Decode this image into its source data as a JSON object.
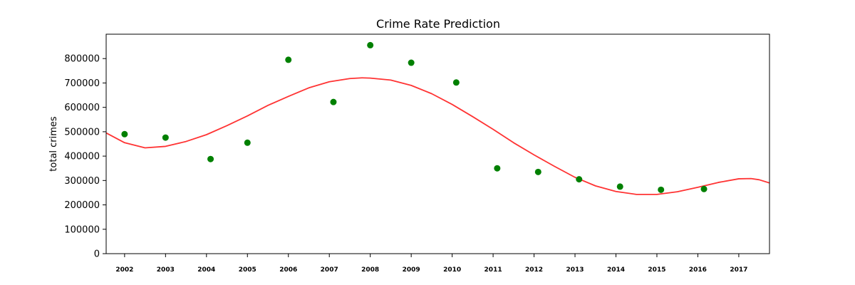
{
  "chart_data": {
    "type": "scatter",
    "title": "Crime Rate Prediction",
    "xlabel": "",
    "ylabel": "total crimes",
    "xlim": [
      2001.55,
      2017.75
    ],
    "ylim": [
      0,
      900000
    ],
    "yticks": [
      0,
      100000,
      200000,
      300000,
      400000,
      500000,
      600000,
      700000,
      800000
    ],
    "ytick_labels": [
      "0",
      "100000",
      "200000",
      "300000",
      "400000",
      "500000",
      "600000",
      "700000",
      "800000"
    ],
    "xticks": [
      2002,
      2003,
      2004,
      2005,
      2006,
      2007,
      2008,
      2009,
      2010,
      2011,
      2012,
      2013,
      2014,
      2015,
      2016,
      2017
    ],
    "xtick_labels": [
      "2002",
      "2003",
      "2004",
      "2005",
      "2006",
      "2007",
      "2008",
      "2009",
      "2010",
      "2011",
      "2012",
      "2013",
      "2014",
      "2015",
      "2016",
      "2017"
    ],
    "grid": false,
    "series": [
      {
        "kind": "scatter",
        "color": "#008000",
        "points": [
          {
            "x": 2002.0,
            "y": 490000
          },
          {
            "x": 2003.0,
            "y": 476000
          },
          {
            "x": 2004.1,
            "y": 388000
          },
          {
            "x": 2005.0,
            "y": 455000
          },
          {
            "x": 2006.0,
            "y": 795000
          },
          {
            "x": 2007.1,
            "y": 622000
          },
          {
            "x": 2008.0,
            "y": 855000
          },
          {
            "x": 2009.0,
            "y": 783000
          },
          {
            "x": 2010.1,
            "y": 702000
          },
          {
            "x": 2011.1,
            "y": 350000
          },
          {
            "x": 2012.1,
            "y": 335000
          },
          {
            "x": 2013.1,
            "y": 305000
          },
          {
            "x": 2014.1,
            "y": 275000
          },
          {
            "x": 2015.1,
            "y": 262000
          },
          {
            "x": 2016.15,
            "y": 265000
          }
        ]
      },
      {
        "kind": "line",
        "color": "#ff3333",
        "points": [
          {
            "x": 2001.55,
            "y": 495000
          },
          {
            "x": 2002.0,
            "y": 455000
          },
          {
            "x": 2002.5,
            "y": 434000
          },
          {
            "x": 2003.0,
            "y": 440000
          },
          {
            "x": 2003.5,
            "y": 460000
          },
          {
            "x": 2004.0,
            "y": 488000
          },
          {
            "x": 2004.5,
            "y": 525000
          },
          {
            "x": 2005.0,
            "y": 565000
          },
          {
            "x": 2005.5,
            "y": 608000
          },
          {
            "x": 2006.0,
            "y": 645000
          },
          {
            "x": 2006.5,
            "y": 680000
          },
          {
            "x": 2007.0,
            "y": 705000
          },
          {
            "x": 2007.5,
            "y": 718000
          },
          {
            "x": 2007.8,
            "y": 721000
          },
          {
            "x": 2008.0,
            "y": 720000
          },
          {
            "x": 2008.5,
            "y": 712000
          },
          {
            "x": 2009.0,
            "y": 690000
          },
          {
            "x": 2009.5,
            "y": 656000
          },
          {
            "x": 2010.0,
            "y": 612000
          },
          {
            "x": 2010.5,
            "y": 562000
          },
          {
            "x": 2011.0,
            "y": 510000
          },
          {
            "x": 2011.5,
            "y": 455000
          },
          {
            "x": 2012.0,
            "y": 405000
          },
          {
            "x": 2012.5,
            "y": 358000
          },
          {
            "x": 2013.0,
            "y": 313000
          },
          {
            "x": 2013.5,
            "y": 278000
          },
          {
            "x": 2014.0,
            "y": 255000
          },
          {
            "x": 2014.5,
            "y": 243000
          },
          {
            "x": 2015.0,
            "y": 243000
          },
          {
            "x": 2015.5,
            "y": 254000
          },
          {
            "x": 2016.0,
            "y": 272000
          },
          {
            "x": 2016.5,
            "y": 292000
          },
          {
            "x": 2017.0,
            "y": 307000
          },
          {
            "x": 2017.3,
            "y": 308000
          },
          {
            "x": 2017.5,
            "y": 303000
          },
          {
            "x": 2017.75,
            "y": 290000
          }
        ]
      }
    ]
  }
}
